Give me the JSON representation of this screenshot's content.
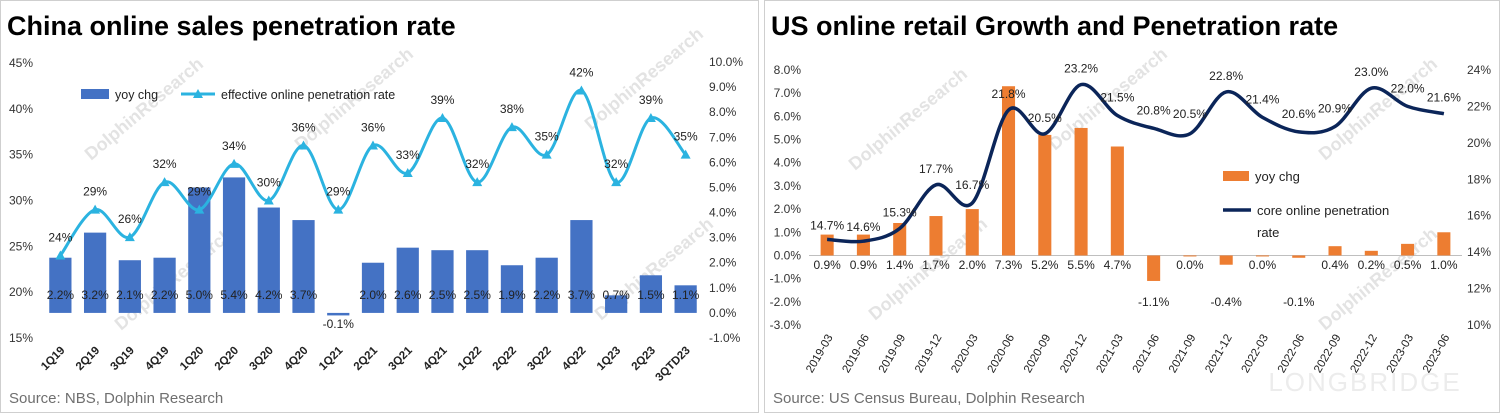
{
  "panels": {
    "left": {
      "title": "China online sales penetration rate",
      "source": "Source: NBS, Dolphin Research",
      "watermark": "DolphinResearch"
    },
    "right": {
      "title": "US online retail Growth and Penetration rate",
      "source": "Source: US Census Bureau, Dolphin Research",
      "watermark": "DolphinResearch",
      "corner_watermark": "LONGBRIDGE"
    }
  },
  "chart_data": [
    {
      "type": "bar+line",
      "title": "China online sales penetration rate",
      "categories": [
        "1Q19",
        "2Q19",
        "3Q19",
        "4Q19",
        "1Q20",
        "2Q20",
        "3Q20",
        "4Q20",
        "1Q21",
        "2Q21",
        "3Q21",
        "4Q21",
        "1Q22",
        "2Q22",
        "3Q22",
        "4Q22",
        "1Q23",
        "2Q23",
        "3QTD23"
      ],
      "series": [
        {
          "name": "yoy chg",
          "type": "bar",
          "axis": "right",
          "color": "#4472c4",
          "values": [
            2.2,
            3.2,
            2.1,
            2.2,
            5.0,
            5.4,
            4.2,
            3.7,
            -0.1,
            2.0,
            2.6,
            2.5,
            2.5,
            1.9,
            2.2,
            3.7,
            0.7,
            1.5,
            1.1
          ],
          "labels": [
            "2.2%",
            "3.2%",
            "2.1%",
            "2.2%",
            "5.0%",
            "5.4%",
            "4.2%",
            "3.7%",
            "-0.1%",
            "2.0%",
            "2.6%",
            "2.5%",
            "2.5%",
            "1.9%",
            "2.2%",
            "3.7%",
            "0.7%",
            "1.5%",
            "1.1%"
          ]
        },
        {
          "name": "effective online penetration rate",
          "type": "line",
          "axis": "left",
          "color": "#2bb3e0",
          "values": [
            24,
            29,
            26,
            32,
            29,
            34,
            30,
            36,
            29,
            36,
            33,
            39,
            32,
            38,
            35,
            42,
            32,
            39,
            35
          ],
          "labels": [
            "24%",
            "29%",
            "26%",
            "32%",
            "29%",
            "34%",
            "30%",
            "36%",
            "29%",
            "36%",
            "33%",
            "39%",
            "32%",
            "38%",
            "35%",
            "42%",
            "32%",
            "39%",
            "35%"
          ]
        }
      ],
      "y_left": {
        "ylim": [
          15,
          45
        ],
        "ticks": [
          "15%",
          "20%",
          "25%",
          "30%",
          "35%",
          "40%",
          "45%"
        ]
      },
      "y_right": {
        "ylim": [
          -1,
          10
        ],
        "ticks": [
          "-1.0%",
          "0.0%",
          "1.0%",
          "2.0%",
          "3.0%",
          "4.0%",
          "5.0%",
          "6.0%",
          "7.0%",
          "8.0%",
          "9.0%",
          "10.0%"
        ]
      },
      "legend": "top-left",
      "grid": false
    },
    {
      "type": "bar+line",
      "title": "US online retail Growth and Penetration rate",
      "categories": [
        "2019-03",
        "2019-06",
        "2019-09",
        "2019-12",
        "2020-03",
        "2020-06",
        "2020-09",
        "2020-12",
        "2021-03",
        "2021-06",
        "2021-09",
        "2021-12",
        "2022-03",
        "2022-06",
        "2022-09",
        "2022-12",
        "2023-03",
        "2023-06"
      ],
      "series": [
        {
          "name": "yoy chg",
          "type": "bar",
          "axis": "left",
          "color": "#ed7d31",
          "values": [
            0.9,
            0.9,
            1.4,
            1.7,
            2.0,
            7.3,
            5.2,
            5.5,
            4.7,
            -1.1,
            0.0,
            -0.4,
            0.0,
            -0.1,
            0.4,
            0.2,
            0.5,
            1.0
          ],
          "labels": [
            "0.9%",
            "0.9%",
            "1.4%",
            "1.7%",
            "2.0%",
            "7.3%",
            "5.2%",
            "5.5%",
            "4.7%",
            "-1.1%",
            "0.0%",
            "-0.4%",
            "0.0%",
            "-0.1%",
            "0.4%",
            "0.2%",
            "0.5%",
            "1.0%"
          ]
        },
        {
          "name": "core online penetration rate",
          "type": "line",
          "axis": "right",
          "color": "#0b2559",
          "values": [
            14.7,
            14.6,
            15.3,
            17.7,
            16.7,
            21.8,
            20.5,
            23.2,
            21.5,
            20.8,
            20.5,
            22.8,
            21.4,
            20.6,
            20.9,
            23.0,
            22.0,
            21.6
          ],
          "labels": [
            "14.7%",
            "14.6%",
            "15.3%",
            "17.7%",
            "16.7%",
            "21.8%",
            "20.5%",
            "23.2%",
            "21.5%",
            "20.8%",
            "20.5%",
            "22.8%",
            "21.4%",
            "20.6%",
            "20.9%",
            "23.0%",
            "22.0%",
            "21.6%"
          ]
        }
      ],
      "y_left": {
        "ylim": [
          -3,
          8
        ],
        "ticks": [
          "-3.0%",
          "-2.0%",
          "-1.0%",
          "0.0%",
          "1.0%",
          "2.0%",
          "3.0%",
          "4.0%",
          "5.0%",
          "6.0%",
          "7.0%",
          "8.0%"
        ]
      },
      "y_right": {
        "ylim": [
          10,
          24
        ],
        "ticks": [
          "10%",
          "12%",
          "14%",
          "16%",
          "18%",
          "20%",
          "22%",
          "24%"
        ]
      },
      "legend": "center-right",
      "grid": false
    }
  ]
}
